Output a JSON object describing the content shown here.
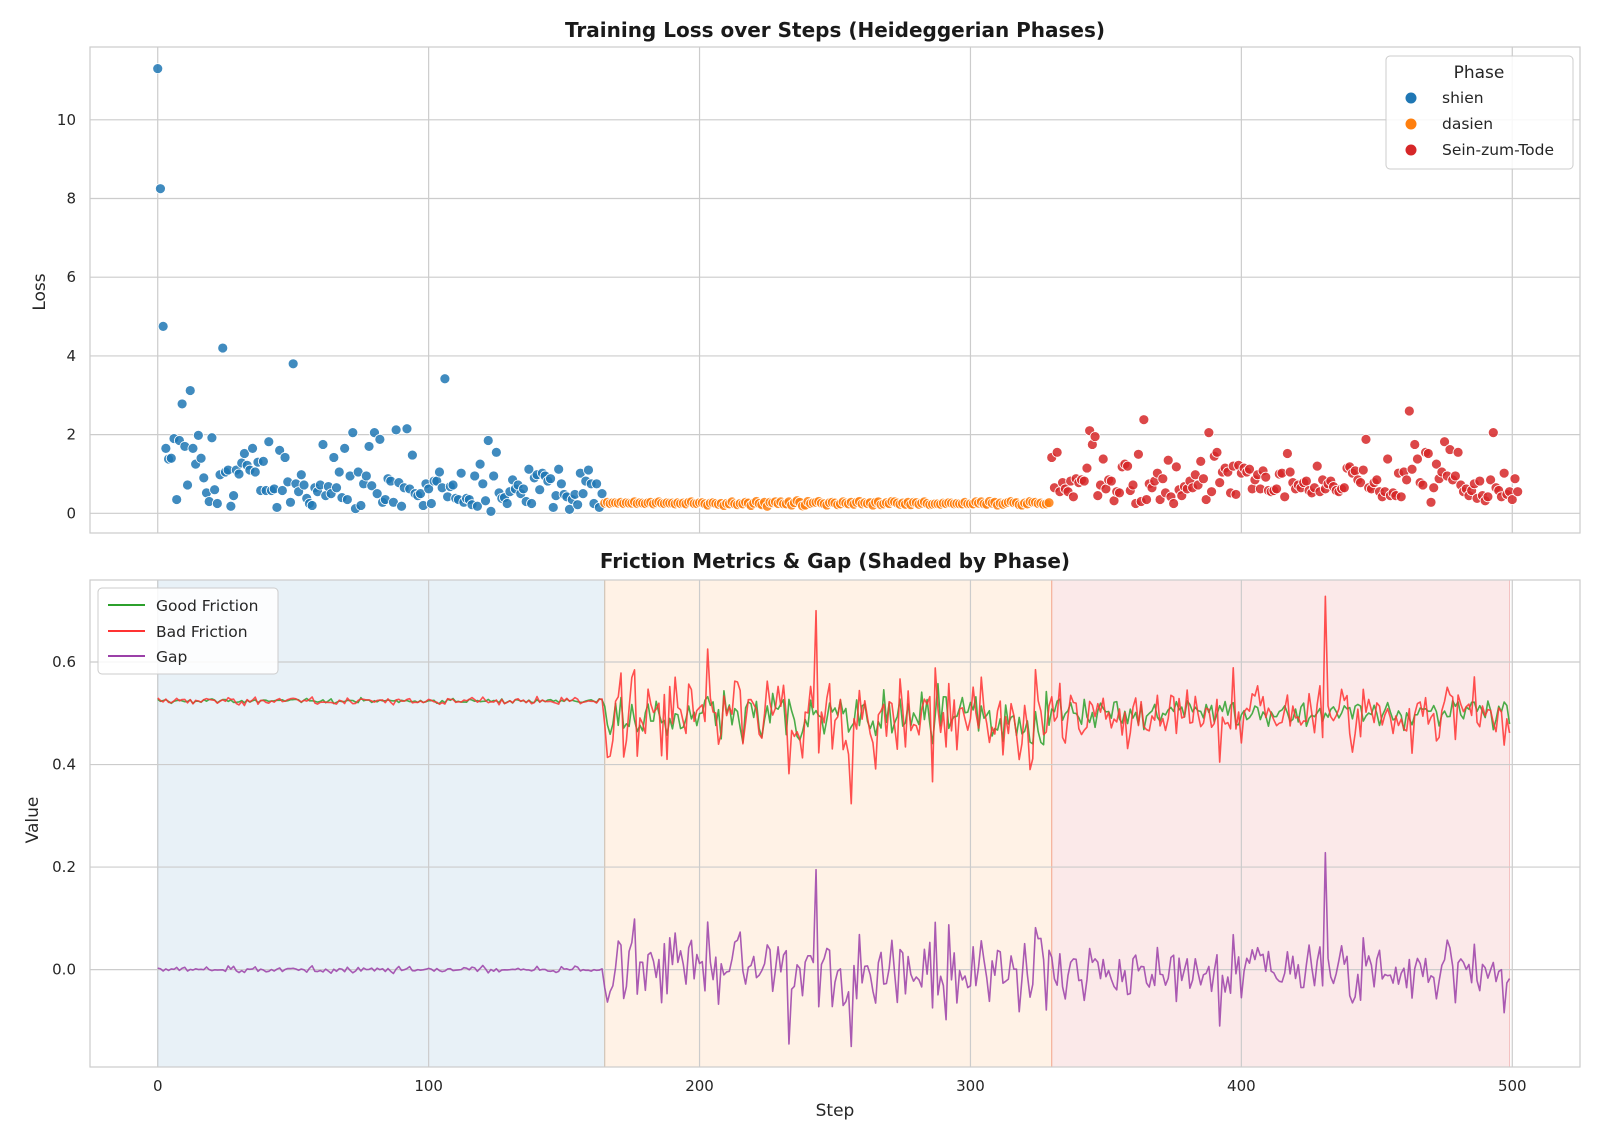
{
  "chart_data": [
    {
      "type": "scatter",
      "title": "Training Loss over Steps (Heideggerian Phases)",
      "xlabel": "",
      "ylabel": "Loss",
      "xlim": [
        -25,
        525
      ],
      "ylim": [
        -0.5,
        11.85
      ],
      "xticks": [
        0,
        100,
        200,
        300,
        400,
        500
      ],
      "yticks": [
        0,
        2,
        4,
        6,
        8,
        10
      ],
      "grid": true,
      "legend": {
        "title": "Phase",
        "position": "top-right",
        "entries": [
          "shien",
          "dasien",
          "Sein-zum-Tode"
        ]
      },
      "colors": {
        "shien": "#1f77b4",
        "dasien": "#ff7f0e",
        "Sein-zum-Tode": "#d62728"
      },
      "series": [
        {
          "name": "shien",
          "x_range": [
            0,
            164
          ],
          "values": [
            11.3,
            8.25,
            4.75,
            1.65,
            1.38,
            1.4,
            1.9,
            0.35,
            1.85,
            2.78,
            1.7,
            0.72,
            3.12,
            1.65,
            1.25,
            1.98,
            1.4,
            0.9,
            0.52,
            0.3,
            1.92,
            0.6,
            0.25,
            0.98,
            4.2,
            1.05,
            1.1,
            0.18,
            0.45,
            1.1,
            1.0,
            1.28,
            1.52,
            1.22,
            1.1,
            1.65,
            1.05,
            1.3,
            0.58,
            1.32,
            0.58,
            1.82,
            0.58,
            0.62,
            0.15,
            1.6,
            0.58,
            1.42,
            0.8,
            0.28,
            3.8,
            0.75,
            0.55,
            0.98,
            0.72,
            0.38,
            0.25,
            0.2,
            0.65,
            0.55,
            0.72,
            1.75,
            0.45,
            0.68,
            0.5,
            1.42,
            0.65,
            1.05,
            0.4,
            1.65,
            0.35,
            0.95,
            2.05,
            0.12,
            1.05,
            0.2,
            0.75,
            0.95,
            1.7,
            0.7,
            2.05,
            0.5,
            1.88,
            0.28,
            0.35,
            0.88,
            0.82,
            0.28,
            2.12,
            0.78,
            0.18,
            0.65,
            2.15,
            0.62,
            1.48,
            0.5,
            0.45,
            0.5,
            0.2,
            0.75,
            0.62,
            0.25,
            0.82,
            0.82,
            1.05,
            0.65,
            3.42,
            0.42,
            0.68,
            0.72,
            0.38,
            0.35,
            1.02,
            0.28,
            0.38,
            0.35,
            0.22,
            0.95,
            0.18,
            1.25,
            0.75,
            0.32,
            1.85,
            0.05,
            0.95,
            1.55,
            0.52,
            0.38,
            0.4,
            0.25,
            0.55,
            0.85,
            0.62,
            0.72,
            0.5,
            0.62,
            0.3,
            1.12,
            0.25,
            0.9,
            0.98,
            0.6,
            1.02,
            0.95,
            0.82,
            0.88,
            0.15,
            0.45,
            1.12,
            0.75,
            0.48,
            0.42,
            0.1,
            0.35,
            0.48,
            0.22,
            1.02,
            0.5,
            0.82,
            1.1,
            0.75,
            0.25,
            0.75,
            0.15,
            0.5
          ]
        },
        {
          "name": "dasien",
          "x_range": [
            165,
            329
          ],
          "values": [
            0.26,
            0.28,
            0.25,
            0.27,
            0.27,
            0.26,
            0.28,
            0.25,
            0.27,
            0.26,
            0.26,
            0.29,
            0.25,
            0.27,
            0.26,
            0.25,
            0.27,
            0.28,
            0.24,
            0.27,
            0.29,
            0.26,
            0.25,
            0.27,
            0.26,
            0.26,
            0.24,
            0.27,
            0.25,
            0.26,
            0.24,
            0.28,
            0.29,
            0.25,
            0.25,
            0.27,
            0.27,
            0.24,
            0.21,
            0.26,
            0.27,
            0.25,
            0.23,
            0.25,
            0.2,
            0.25,
            0.24,
            0.29,
            0.24,
            0.22,
            0.25,
            0.24,
            0.28,
            0.26,
            0.2,
            0.26,
            0.3,
            0.25,
            0.22,
            0.28,
            0.18,
            0.28,
            0.27,
            0.29,
            0.25,
            0.29,
            0.24,
            0.24,
            0.29,
            0.21,
            0.27,
            0.32,
            0.28,
            0.19,
            0.21,
            0.3,
            0.25,
            0.27,
            0.28,
            0.3,
            0.26,
            0.24,
            0.21,
            0.27,
            0.28,
            0.26,
            0.22,
            0.24,
            0.29,
            0.26,
            0.24,
            0.28,
            0.23,
            0.28,
            0.3,
            0.24,
            0.27,
            0.25,
            0.27,
            0.21,
            0.28,
            0.29,
            0.22,
            0.24,
            0.27,
            0.25,
            0.3,
            0.29,
            0.26,
            0.23,
            0.26,
            0.23,
            0.28,
            0.22,
            0.28,
            0.27,
            0.23,
            0.26,
            0.29,
            0.25,
            0.22,
            0.23,
            0.24,
            0.24,
            0.23,
            0.26,
            0.25,
            0.27,
            0.26,
            0.24,
            0.25,
            0.24,
            0.24,
            0.28,
            0.24,
            0.24,
            0.24,
            0.29,
            0.26,
            0.29,
            0.24,
            0.23,
            0.3,
            0.26,
            0.28,
            0.21,
            0.26,
            0.23,
            0.26,
            0.28,
            0.3,
            0.27,
            0.27,
            0.22,
            0.21,
            0.26,
            0.24,
            0.3,
            0.28,
            0.28,
            0.25,
            0.26,
            0.23,
            0.24,
            0.27
          ]
        },
        {
          "name": "Sein-zum-Tode",
          "x_range": [
            330,
            499
          ],
          "values": [
            1.42,
            0.65,
            1.55,
            0.55,
            0.78,
            0.62,
            0.55,
            0.82,
            0.42,
            0.88,
            0.78,
            0.85,
            0.82,
            1.15,
            2.1,
            1.75,
            1.95,
            0.45,
            0.72,
            1.38,
            0.62,
            0.85,
            0.82,
            0.32,
            0.55,
            0.52,
            1.18,
            1.25,
            1.2,
            0.58,
            0.72,
            0.25,
            1.5,
            0.3,
            2.38,
            0.35,
            0.75,
            0.65,
            0.82,
            1.02,
            0.35,
            0.88,
            0.52,
            1.35,
            0.42,
            0.25,
            1.18,
            0.6,
            0.45,
            0.68,
            0.62,
            0.82,
            0.65,
            0.98,
            0.72,
            1.32,
            0.88,
            0.35,
            2.05,
            0.55,
            1.45,
            1.55,
            0.78,
            1.05,
            1.15,
            1.05,
            0.52,
            1.2,
            0.48,
            1.22,
            1.02,
            1.15,
            1.05,
            1.12,
            0.62,
            0.85,
            0.98,
            0.62,
            1.08,
            0.92,
            0.58,
            0.55,
            0.58,
            0.62,
            1.0,
            1.02,
            0.42,
            1.52,
            1.05,
            0.78,
            0.62,
            0.72,
            0.65,
            0.78,
            0.82,
            0.58,
            0.52,
            0.65,
            1.2,
            0.55,
            0.85,
            0.62,
            0.75,
            0.82,
            0.68,
            0.58,
            0.55,
            0.62,
            0.65,
            1.15,
            1.18,
            1.02,
            1.08,
            0.85,
            0.78,
            1.1,
            1.88,
            0.65,
            0.62,
            0.78,
            0.85,
            0.55,
            0.42,
            0.55,
            1.38,
            0.45,
            0.52,
            0.45,
            1.02,
            0.42,
            1.05,
            0.85,
            2.6,
            1.12,
            1.75,
            1.38,
            0.78,
            0.72,
            1.55,
            1.52,
            0.28,
            0.65,
            1.25,
            0.88,
            1.05,
            1.82,
            0.95,
            1.62,
            0.85,
            0.95,
            1.55,
            0.72,
            0.55,
            0.62,
            0.45,
            0.58,
            0.75,
            0.38,
            0.82,
            0.45,
            0.32,
            0.42,
            0.85,
            2.05,
            0.65,
            0.58,
            0.42,
            1.02,
            0.48,
            0.55,
            0.35,
            0.88,
            0.55
          ]
        }
      ]
    },
    {
      "type": "line",
      "title": "Friction Metrics & Gap (Shaded by Phase)",
      "xlabel": "Step",
      "ylabel": "Value",
      "xlim": [
        -25,
        525
      ],
      "ylim": [
        -0.19,
        0.76
      ],
      "xticks": [
        0,
        100,
        200,
        300,
        400,
        500
      ],
      "yticks": [
        0.0,
        0.2,
        0.4,
        0.6
      ],
      "grid": true,
      "legend": {
        "position": "top-left",
        "entries": [
          "Good Friction",
          "Bad Friction",
          "Gap"
        ]
      },
      "colors": {
        "Good Friction": "#2ca02c",
        "Bad Friction": "#ff3333",
        "Gap": "#9b40a8"
      },
      "phase_shading": [
        {
          "phase": "shien",
          "x": [
            0,
            165
          ],
          "color": "#1f77b4"
        },
        {
          "phase": "dasien",
          "x": [
            165,
            330
          ],
          "color": "#ff7f0e"
        },
        {
          "phase": "Sein-zum-Tode",
          "x": [
            330,
            499
          ],
          "color": "#d62728"
        }
      ],
      "series": [
        {
          "name": "Good Friction",
          "x_range": [
            0,
            499
          ],
          "phase_baseline": [
            0.524,
            0.49,
            0.5
          ],
          "phase_amplitude": [
            0.004,
            0.045,
            0.025
          ]
        },
        {
          "name": "Bad Friction",
          "x_range": [
            0,
            499
          ],
          "phase_baseline": [
            0.524,
            0.5,
            0.515
          ],
          "phase_amplitude": [
            0.004,
            0.06,
            0.035
          ]
        },
        {
          "name": "Gap",
          "x_range": [
            0,
            499
          ],
          "phase_baseline": [
            0.0,
            0.0,
            0.0
          ],
          "phase_amplitude": [
            0.005,
            0.065,
            0.045
          ],
          "peaks": [
            [
              243,
              0.195
            ],
            [
              431,
              0.228
            ],
            [
              256,
              -0.15
            ],
            [
              233,
              -0.145
            ],
            [
              392,
              -0.11
            ]
          ]
        }
      ]
    }
  ]
}
